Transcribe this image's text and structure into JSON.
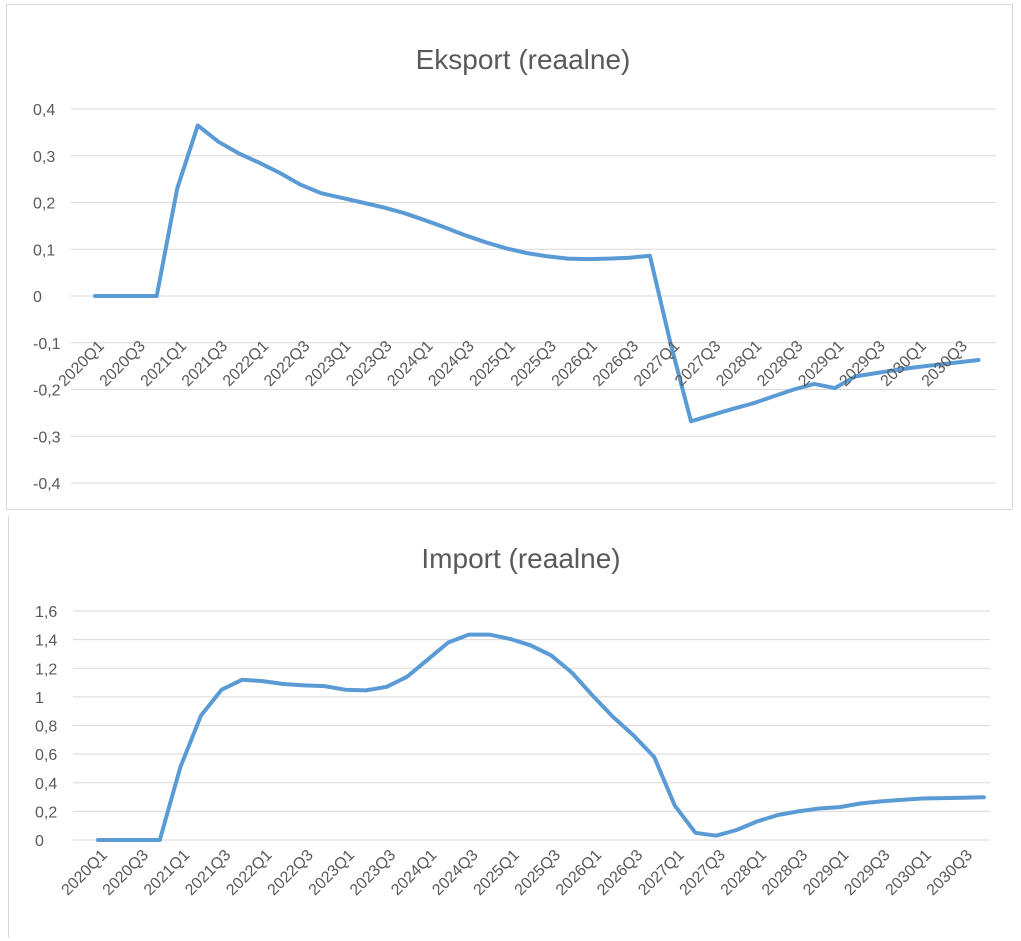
{
  "colors": {
    "series": "#5b9bd5",
    "grid": "#d9d9d9",
    "text": "#595959"
  },
  "chart_data": [
    {
      "type": "line",
      "title": "Eksport (reaalne)",
      "grid": true,
      "legend": "none",
      "ylim": [
        -0.4,
        0.4
      ],
      "yticks": [
        "-0,4",
        "-0,3",
        "-0,2",
        "-0,1",
        "0",
        "0,1",
        "0,2",
        "0,3",
        "0,4"
      ],
      "yticks_values": [
        -0.4,
        -0.3,
        -0.2,
        -0.1,
        0,
        0.1,
        0.2,
        0.3,
        0.4
      ],
      "xlabels": [
        "2020Q1",
        "2020Q3",
        "2021Q1",
        "2021Q3",
        "2022Q1",
        "2022Q3",
        "2023Q1",
        "2023Q3",
        "2024Q1",
        "2024Q3",
        "2025Q1",
        "2025Q3",
        "2026Q1",
        "2026Q3",
        "2027Q1",
        "2027Q3",
        "2028Q1",
        "2028Q3",
        "2029Q1",
        "2029Q3",
        "2030Q1",
        "2030Q3"
      ],
      "x": [
        "2020Q1",
        "2020Q2",
        "2020Q3",
        "2020Q4",
        "2021Q1",
        "2021Q2",
        "2021Q3",
        "2021Q4",
        "2022Q1",
        "2022Q2",
        "2022Q3",
        "2022Q4",
        "2023Q1",
        "2023Q2",
        "2023Q3",
        "2023Q4",
        "2024Q1",
        "2024Q2",
        "2024Q3",
        "2024Q4",
        "2025Q1",
        "2025Q2",
        "2025Q3",
        "2025Q4",
        "2026Q1",
        "2026Q2",
        "2026Q3",
        "2026Q4",
        "2027Q1",
        "2027Q2",
        "2027Q3",
        "2027Q4",
        "2028Q1",
        "2028Q2",
        "2028Q3",
        "2028Q4",
        "2029Q1",
        "2029Q2",
        "2029Q3",
        "2029Q4",
        "2030Q1",
        "2030Q2",
        "2030Q3",
        "2030Q4"
      ],
      "series": [
        {
          "values": [
            0,
            0,
            0,
            0,
            0.23,
            0.365,
            0.33,
            0.305,
            0.285,
            0.263,
            0.238,
            0.22,
            0.21,
            0.2,
            0.19,
            0.178,
            0.163,
            0.147,
            0.13,
            0.115,
            0.102,
            0.092,
            0.085,
            0.08,
            0.079,
            0.08,
            0.082,
            0.086,
            -0.1,
            -0.268,
            -0.255,
            -0.242,
            -0.23,
            -0.215,
            -0.2,
            -0.188,
            -0.197,
            -0.172,
            -0.165,
            -0.158,
            -0.152,
            -0.147,
            -0.142,
            -0.137
          ]
        }
      ]
    },
    {
      "type": "line",
      "title": "Import (reaalne)",
      "grid": true,
      "legend": "none",
      "ylim": [
        0,
        1.6
      ],
      "yticks": [
        "0",
        "0,2",
        "0,4",
        "0,6",
        "0,8",
        "1",
        "1,2",
        "1,4",
        "1,6"
      ],
      "yticks_values": [
        0,
        0.2,
        0.4,
        0.6,
        0.8,
        1,
        1.2,
        1.4,
        1.6
      ],
      "xlabels": [
        "2020Q1",
        "2020Q3",
        "2021Q1",
        "2021Q3",
        "2022Q1",
        "2022Q3",
        "2023Q1",
        "2023Q3",
        "2024Q1",
        "2024Q3",
        "2025Q1",
        "2025Q3",
        "2026Q1",
        "2026Q3",
        "2027Q1",
        "2027Q3",
        "2028Q1",
        "2028Q3",
        "2029Q1",
        "2029Q3",
        "2030Q1",
        "2030Q3"
      ],
      "x": [
        "2020Q1",
        "2020Q2",
        "2020Q3",
        "2020Q4",
        "2021Q1",
        "2021Q2",
        "2021Q3",
        "2021Q4",
        "2022Q1",
        "2022Q2",
        "2022Q3",
        "2022Q4",
        "2023Q1",
        "2023Q2",
        "2023Q3",
        "2023Q4",
        "2024Q1",
        "2024Q2",
        "2024Q3",
        "2024Q4",
        "2025Q1",
        "2025Q2",
        "2025Q3",
        "2025Q4",
        "2026Q1",
        "2026Q2",
        "2026Q3",
        "2026Q4",
        "2027Q1",
        "2027Q2",
        "2027Q3",
        "2027Q4",
        "2028Q1",
        "2028Q2",
        "2028Q3",
        "2028Q4",
        "2029Q1",
        "2029Q2",
        "2029Q3",
        "2029Q4",
        "2030Q1",
        "2030Q2",
        "2030Q3",
        "2030Q4"
      ],
      "series": [
        {
          "values": [
            0,
            0,
            0,
            0,
            0.51,
            0.87,
            1.05,
            1.12,
            1.11,
            1.09,
            1.08,
            1.075,
            1.05,
            1.045,
            1.07,
            1.14,
            1.26,
            1.38,
            1.435,
            1.435,
            1.405,
            1.36,
            1.29,
            1.17,
            1.01,
            0.86,
            0.73,
            0.58,
            0.24,
            0.05,
            0.03,
            0.07,
            0.13,
            0.175,
            0.2,
            0.22,
            0.23,
            0.255,
            0.27,
            0.28,
            0.29,
            0.293,
            0.295,
            0.298
          ]
        }
      ]
    }
  ]
}
